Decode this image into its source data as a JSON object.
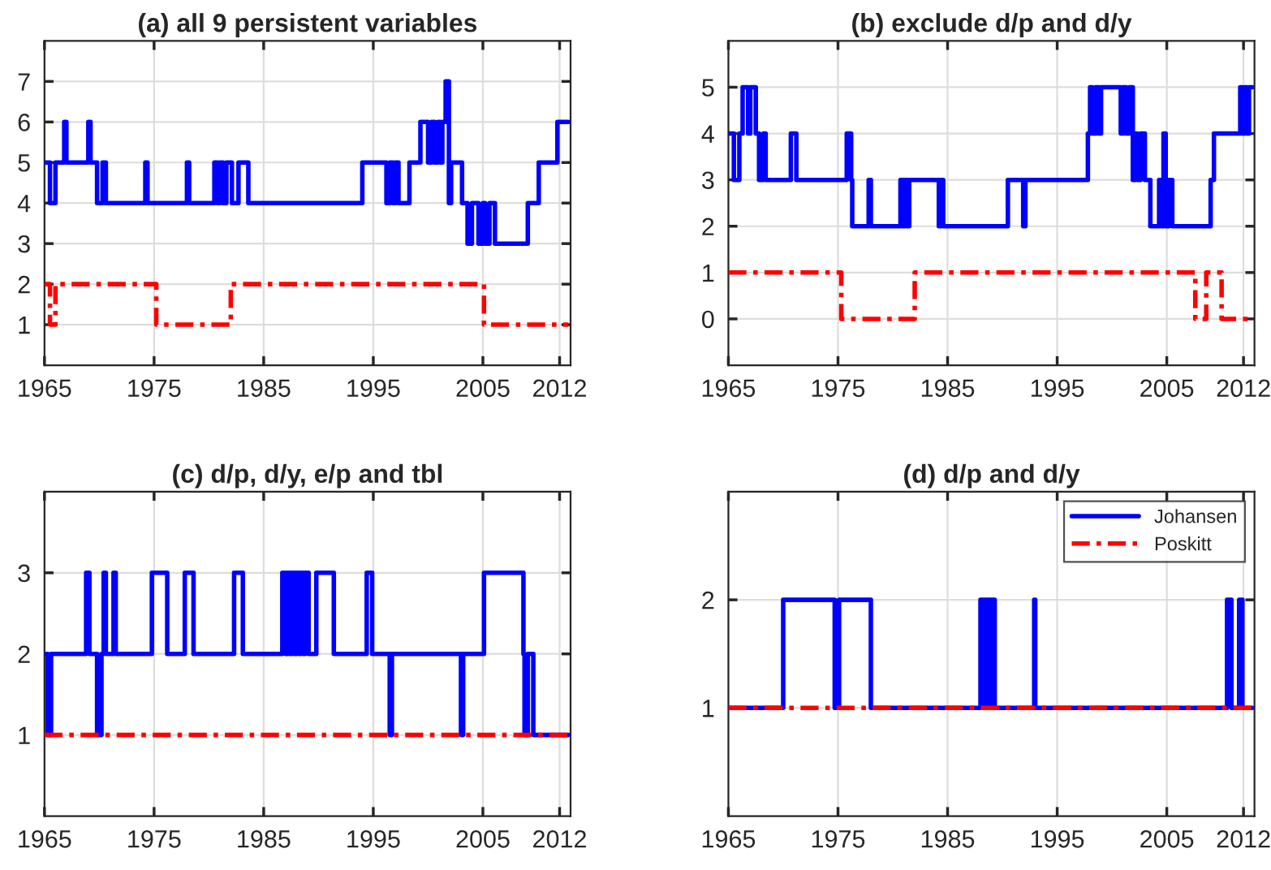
{
  "chart_data": [
    {
      "type": "step",
      "title": "(a) all 9 persistent variables",
      "xlim": [
        1965,
        2013
      ],
      "xticks": [
        1965,
        1975,
        1985,
        1995,
        2005,
        2012
      ],
      "ylim": [
        0,
        8
      ],
      "yticks": [
        1,
        2,
        3,
        4,
        5,
        6,
        7
      ],
      "grid": true,
      "legend": false,
      "series": [
        {
          "color": "#0000ff",
          "line_style": "solid",
          "x": [
            1965,
            1965.5,
            1966,
            1966.8,
            1967,
            1969,
            1969.2,
            1969.8,
            1970.3,
            1970.6,
            1974.2,
            1974.4,
            1978,
            1978.2,
            1980.5,
            1980.8,
            1981,
            1981.3,
            1981.6,
            1982.1,
            1982.7,
            1983.6,
            1994,
            1996.2,
            1996.5,
            1996.8,
            1997,
            1997.3,
            1998.3,
            1999.3,
            2000,
            2000.3,
            2000.6,
            2000.9,
            2001.1,
            2001.3,
            2001.6,
            2001.9,
            2002.1,
            2003.1,
            2003.6,
            2004,
            2004.6,
            2005,
            2005.2,
            2005.6,
            2006.1,
            2009.1,
            2010.1,
            2011.8,
            2012.8
          ],
          "values": [
            5,
            4,
            5,
            6,
            5,
            6,
            5,
            4,
            5,
            4,
            5,
            4,
            5,
            4,
            5,
            4,
            5,
            4,
            5,
            4,
            5,
            4,
            5,
            4,
            5,
            4,
            5,
            4,
            5,
            6,
            5,
            6,
            5,
            6,
            5,
            6,
            7,
            4,
            5,
            4,
            3,
            4,
            3,
            4,
            3,
            4,
            3,
            4,
            5,
            6,
            6
          ]
        },
        {
          "color": "#ff0000",
          "line_style": "dashdot",
          "x": [
            1965,
            1965.5,
            1966,
            1975.2,
            1982,
            2005.1,
            2012.8
          ],
          "values": [
            2,
            1,
            2,
            1,
            2,
            1,
            1
          ]
        }
      ]
    },
    {
      "type": "step",
      "title": "(b) exclude d/p and d/y",
      "xlim": [
        1965,
        2013
      ],
      "xticks": [
        1965,
        1975,
        1985,
        1995,
        2005,
        2012
      ],
      "ylim": [
        -1,
        6
      ],
      "yticks": [
        0,
        1,
        2,
        3,
        4,
        5
      ],
      "grid": true,
      "legend": false,
      "series": [
        {
          "color": "#0000ff",
          "line_style": "solid",
          "x": [
            1965,
            1965.5,
            1966,
            1966.3,
            1966.8,
            1967,
            1967.5,
            1967.8,
            1968.2,
            1968.4,
            1970.7,
            1971.2,
            1975.8,
            1976.2,
            1976.3,
            1977.8,
            1978,
            1980.7,
            1980.9,
            1981.1,
            1981.3,
            1981.5,
            1984.2,
            1984.4,
            1984.6,
            1990.5,
            1991.9,
            1992.1,
            1997.8,
            1998,
            1998.2,
            1998.5,
            1998.8,
            1999,
            2000.8,
            2001,
            2001.3,
            2001.6,
            2001.9,
            2002.1,
            2002.3,
            2002.6,
            2003,
            2003.5,
            2004.3,
            2004.5,
            2004.7,
            2004.9,
            2005.2,
            2005.5,
            2009,
            2009.3,
            2011.7,
            2011.9,
            2012.1,
            2012.3,
            2012.5,
            2012.8
          ],
          "values": [
            4,
            3,
            4,
            5,
            4,
            5,
            4,
            3,
            4,
            3,
            4,
            3,
            4,
            3,
            2,
            3,
            2,
            3,
            2,
            3,
            2,
            3,
            2,
            3,
            2,
            3,
            2,
            3,
            4,
            5,
            4,
            5,
            4,
            5,
            4,
            5,
            4,
            5,
            3,
            4,
            3,
            4,
            3,
            2,
            3,
            2,
            4,
            2,
            3,
            2,
            3,
            4,
            5,
            4,
            5,
            4,
            5,
            5
          ]
        },
        {
          "color": "#ff0000",
          "line_style": "dashdot",
          "x": [
            1965,
            1975.3,
            1982,
            2007.6,
            2008.6,
            2010,
            2012.8
          ],
          "values": [
            1,
            0,
            1,
            0,
            1,
            0,
            0
          ]
        }
      ]
    },
    {
      "type": "step",
      "title": "(c) d/p, d/y, e/p and tbl",
      "xlim": [
        1965,
        2013
      ],
      "xticks": [
        1965,
        1975,
        1985,
        1995,
        2005,
        2012
      ],
      "ylim": [
        0,
        4
      ],
      "yticks": [
        1,
        2,
        3
      ],
      "grid": true,
      "legend": false,
      "series": [
        {
          "color": "#0000ff",
          "line_style": "solid",
          "x": [
            1965,
            1965.3,
            1965.6,
            1968.8,
            1969.1,
            1969.8,
            1970.2,
            1970.4,
            1970.6,
            1971.3,
            1971.5,
            1974.8,
            1976.2,
            1977.8,
            1978.6,
            1982.3,
            1983.1,
            1986.7,
            1987,
            1987.2,
            1987.4,
            1987.6,
            1987.8,
            1988,
            1988.2,
            1988.4,
            1988.6,
            1988.8,
            1989.1,
            1989.8,
            1991.4,
            1994.4,
            1994.9,
            1996.5,
            1996.7,
            2003,
            2003.2,
            2005.1,
            2008.7,
            2008.8,
            2009.1,
            2009.6,
            2012.8
          ],
          "values": [
            2,
            1,
            2,
            3,
            2,
            1,
            2,
            3,
            2,
            3,
            2,
            3,
            2,
            3,
            2,
            3,
            2,
            3,
            2,
            3,
            2,
            3,
            2,
            3,
            2,
            3,
            2,
            3,
            2,
            3,
            2,
            3,
            2,
            1,
            2,
            1,
            2,
            3,
            2,
            1,
            2,
            1,
            1
          ]
        },
        {
          "color": "#ff0000",
          "line_style": "dashdot",
          "x": [
            1965,
            2012.8
          ],
          "values": [
            1,
            1
          ]
        }
      ]
    },
    {
      "type": "step",
      "title": "(d) d/p and d/y",
      "xlim": [
        1965,
        2013
      ],
      "xticks": [
        1965,
        1975,
        1985,
        1995,
        2005,
        2012
      ],
      "ylim": [
        0,
        3
      ],
      "yticks": [
        1,
        2
      ],
      "grid": true,
      "legend": "top right",
      "series": [
        {
          "name": "Johansen",
          "color": "#0000ff",
          "line_style": "solid",
          "x": [
            1965,
            1970,
            1974.7,
            1975.1,
            1978,
            1988,
            1988.3,
            1988.5,
            1988.7,
            1988.9,
            1989.3,
            1992.9,
            1993,
            2010.5,
            2010.9,
            2011.6,
            2011.9,
            2012.8
          ],
          "values": [
            1,
            2,
            1,
            2,
            1,
            2,
            1,
            2,
            1,
            2,
            1,
            2,
            1,
            2,
            1,
            2,
            1,
            1
          ]
        },
        {
          "name": "Poskitt",
          "color": "#ff0000",
          "line_style": "dashdot",
          "x": [
            1965,
            2012.8
          ],
          "values": [
            1,
            1
          ]
        }
      ]
    }
  ]
}
